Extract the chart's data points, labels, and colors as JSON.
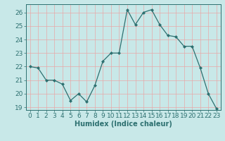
{
  "x": [
    0,
    1,
    2,
    3,
    4,
    5,
    6,
    7,
    8,
    9,
    10,
    11,
    12,
    13,
    14,
    15,
    16,
    17,
    18,
    19,
    20,
    21,
    22,
    23
  ],
  "y": [
    22.0,
    21.9,
    21.0,
    21.0,
    20.7,
    19.5,
    20.0,
    19.4,
    20.6,
    22.4,
    23.0,
    23.0,
    26.2,
    25.1,
    26.0,
    26.2,
    25.1,
    24.3,
    24.2,
    23.5,
    23.5,
    21.9,
    20.0,
    18.9
  ],
  "line_color": "#2d7070",
  "marker": "D",
  "marker_size": 2.0,
  "bg_color": "#c8e8e8",
  "grid_color": "#e8a8a8",
  "xlabel": "Humidex (Indice chaleur)",
  "xlim": [
    -0.5,
    23.5
  ],
  "ylim": [
    18.8,
    26.6
  ],
  "yticks": [
    19,
    20,
    21,
    22,
    23,
    24,
    25,
    26
  ],
  "xticks": [
    0,
    1,
    2,
    3,
    4,
    5,
    6,
    7,
    8,
    9,
    10,
    11,
    12,
    13,
    14,
    15,
    16,
    17,
    18,
    19,
    20,
    21,
    22,
    23
  ],
  "tick_color": "#2d7070",
  "label_color": "#2d7070",
  "xlabel_fontsize": 7,
  "tick_fontsize": 6.5
}
